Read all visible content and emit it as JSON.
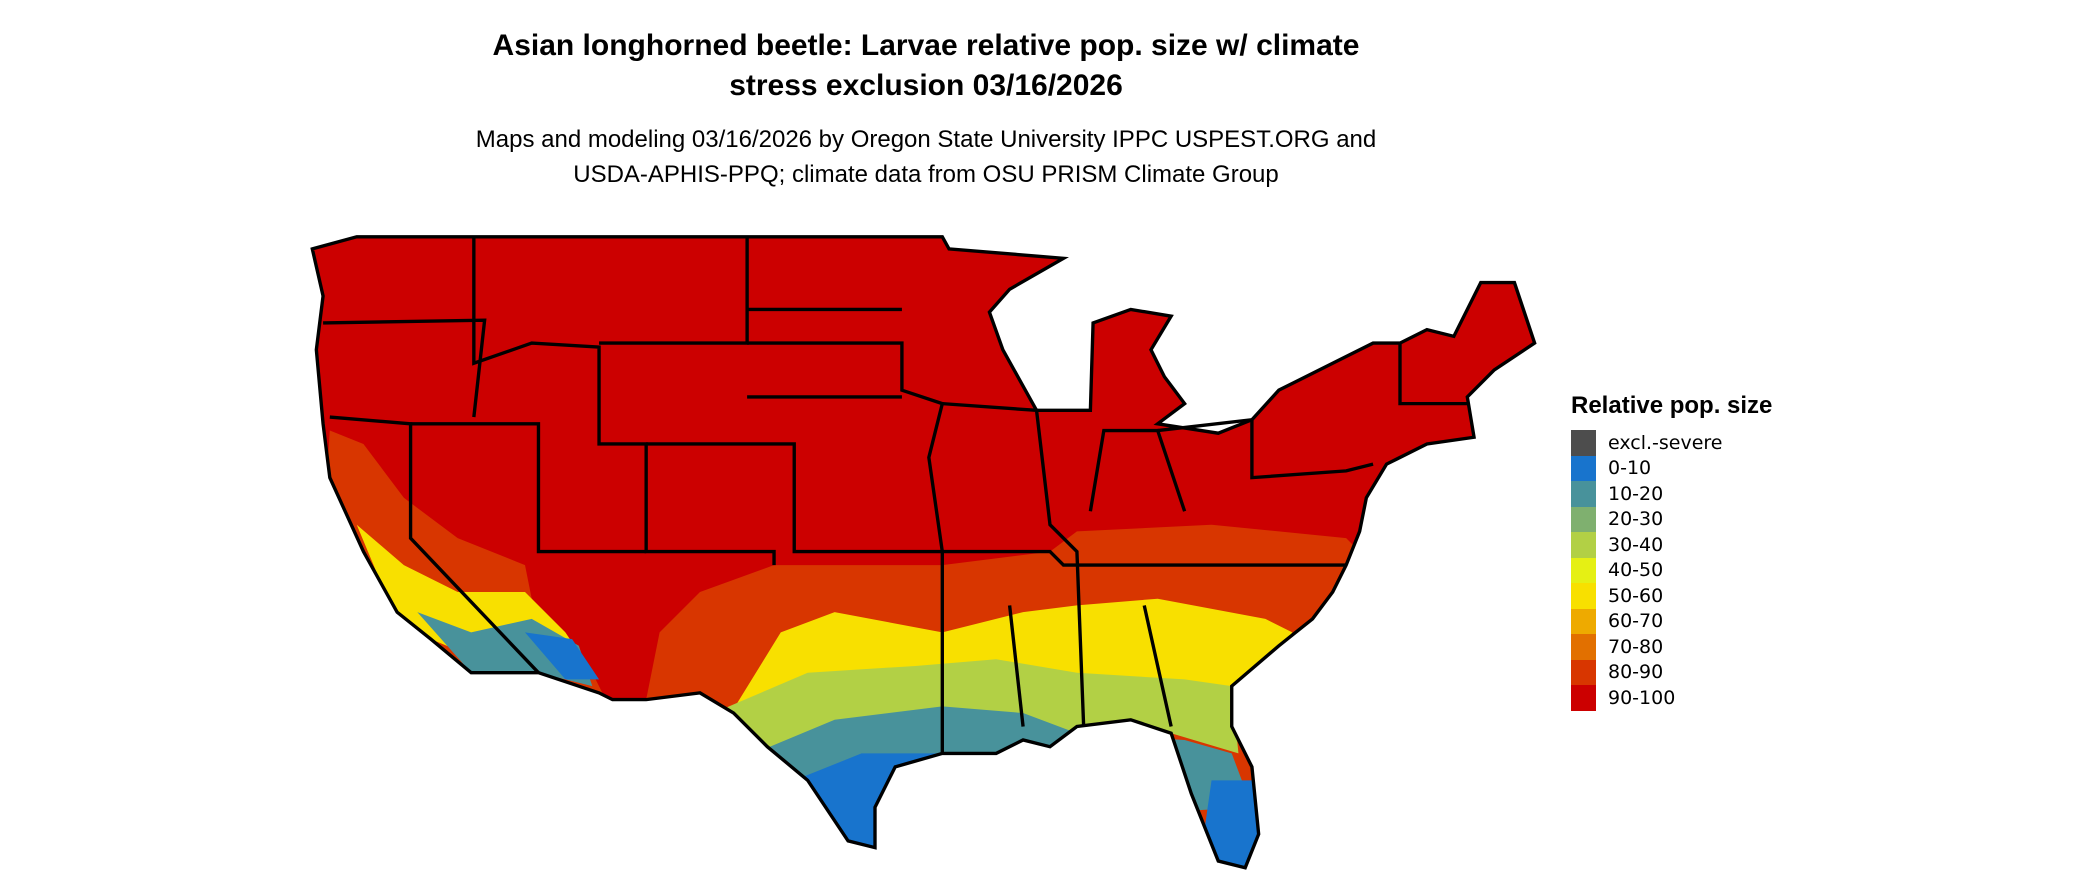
{
  "title_line1": "Asian longhorned beetle: Larvae relative pop. size w/ climate",
  "title_line2": "stress exclusion 03/16/2026",
  "subtitle_line1": "Maps and modeling 03/16/2026 by Oregon State University IPPC USPEST.ORG and",
  "subtitle_line2": "USDA-APHIS-PPQ; climate data from OSU PRISM Climate Group",
  "legend": {
    "title": "Relative pop. size",
    "items": [
      {
        "label": "excl.-severe",
        "color": "#4d4d4d"
      },
      {
        "label": "0-10",
        "color": "#1874cd"
      },
      {
        "label": "10-20",
        "color": "#48929b"
      },
      {
        "label": "20-30",
        "color": "#7fb06f"
      },
      {
        "label": "30-40",
        "color": "#b2d045"
      },
      {
        "label": "40-50",
        "color": "#e5f014"
      },
      {
        "label": "50-60",
        "color": "#f8e000"
      },
      {
        "label": "60-70",
        "color": "#eeaa00"
      },
      {
        "label": "70-80",
        "color": "#e27000"
      },
      {
        "label": "80-90",
        "color": "#d83600"
      },
      {
        "label": "90-100",
        "color": "#cc0000"
      }
    ]
  },
  "region": "Contiguous United States"
}
